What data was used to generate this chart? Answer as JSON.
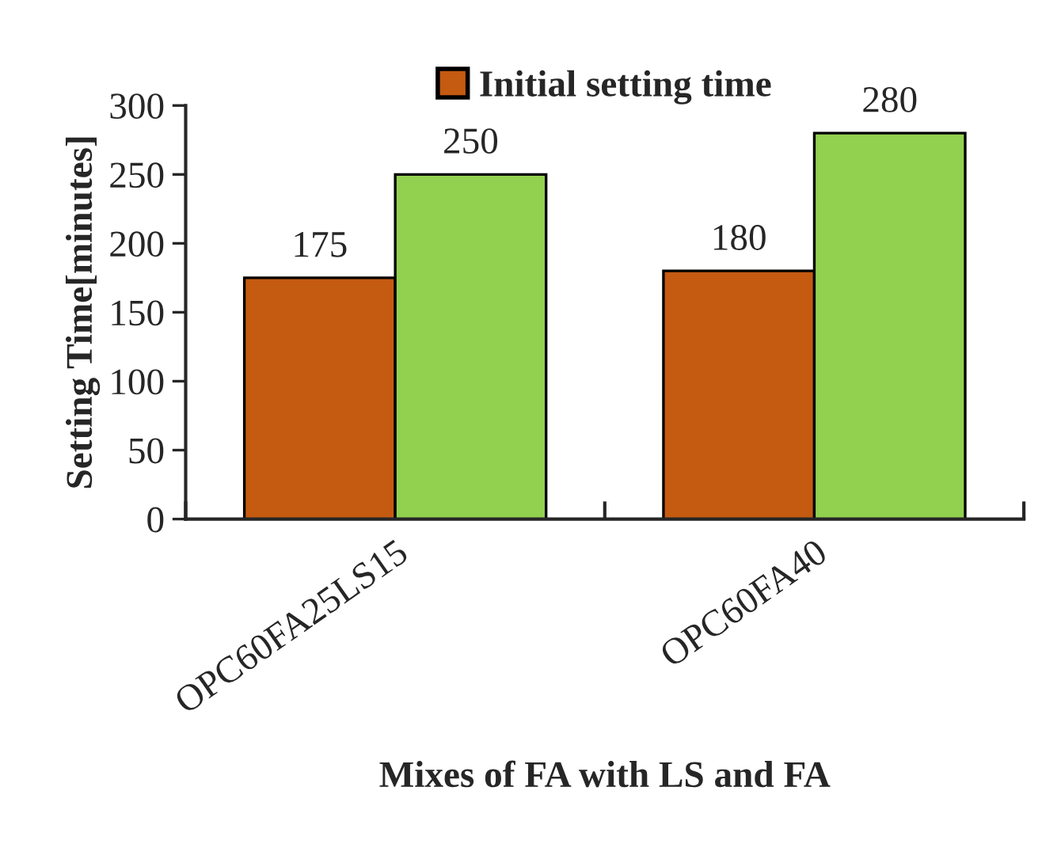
{
  "chart_data": {
    "type": "bar",
    "xlabel": "Mixes of FA with LS and FA",
    "ylabel": "Setting Time[minutes]",
    "categories": [
      "OPC60FA25LS15",
      "OPC60FA40"
    ],
    "series": [
      {
        "name": "Initial setting time",
        "color": "#c55a11",
        "values": [
          175,
          180
        ]
      },
      {
        "color": "#92d050",
        "values": [
          250,
          280
        ]
      }
    ],
    "ylim": [
      0,
      300
    ],
    "yticks": [
      0,
      50,
      100,
      150,
      200,
      250,
      300
    ],
    "data_labels": true,
    "legend": "top",
    "grid": false
  }
}
